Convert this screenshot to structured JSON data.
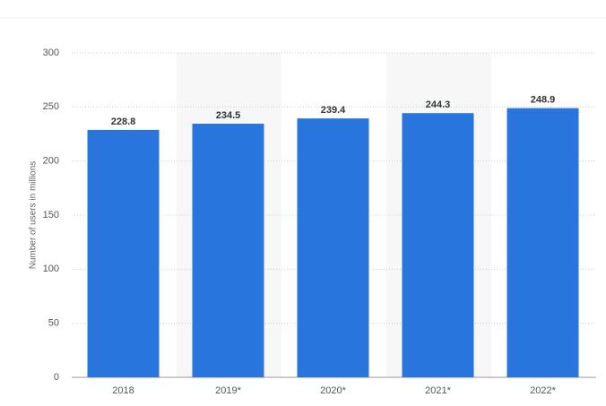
{
  "chart_data": {
    "type": "bar",
    "y_label": "Number of users in millions",
    "categories": [
      "2018",
      "2019*",
      "2020*",
      "2021*",
      "2022*"
    ],
    "values": [
      228.8,
      234.5,
      239.4,
      244.3,
      248.9
    ],
    "color": "#2876dd",
    "ylim": [
      0,
      300
    ],
    "yticks": [
      0,
      50,
      100,
      150,
      200,
      250,
      300
    ],
    "grid": true
  }
}
